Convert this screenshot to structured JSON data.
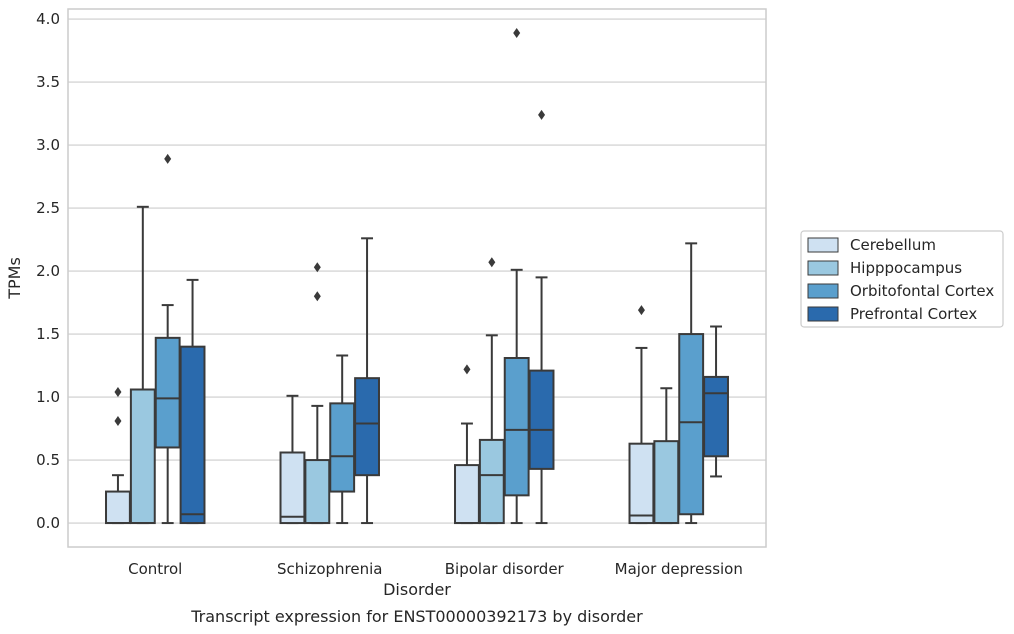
{
  "chart_data": {
    "type": "box",
    "caption": "Transcript expression for ENST00000392173 by disorder",
    "xlabel": "Disorder",
    "ylabel": "TPMs",
    "ylim": [
      -0.19,
      4.08
    ],
    "yticks": [
      0.0,
      0.5,
      1.0,
      1.5,
      2.0,
      2.5,
      3.0,
      3.5,
      4.0
    ],
    "ytick_labels": [
      "0.0",
      "0.5",
      "1.0",
      "1.5",
      "2.0",
      "2.5",
      "3.0",
      "3.5",
      "4.0"
    ],
    "grid": "horizontal",
    "legend_position": "right",
    "categories": [
      "Control",
      "Schizophrenia",
      "Bipolar disorder",
      "Major depression"
    ],
    "series": [
      {
        "name": "Cerebellum",
        "color": "#cfe1f2",
        "boxes": [
          {
            "min": 0.0,
            "q1": 0.0,
            "median": 0.0,
            "q3": 0.25,
            "max": 0.38,
            "outliers": [
              0.81,
              1.04
            ]
          },
          {
            "min": 0.0,
            "q1": 0.0,
            "median": 0.05,
            "q3": 0.56,
            "max": 1.01,
            "outliers": []
          },
          {
            "min": 0.0,
            "q1": 0.0,
            "median": 0.0,
            "q3": 0.46,
            "max": 0.79,
            "outliers": [
              1.22
            ]
          },
          {
            "min": 0.0,
            "q1": 0.0,
            "median": 0.06,
            "q3": 0.63,
            "max": 1.39,
            "outliers": [
              1.69
            ]
          }
        ]
      },
      {
        "name": "Hipppocampus",
        "color": "#9ac8e0",
        "boxes": [
          {
            "min": 0.0,
            "q1": 0.0,
            "median": 0.0,
            "q3": 1.06,
            "max": 2.51,
            "outliers": []
          },
          {
            "min": 0.0,
            "q1": 0.0,
            "median": 0.0,
            "q3": 0.5,
            "max": 0.93,
            "outliers": [
              1.8,
              2.03
            ]
          },
          {
            "min": 0.0,
            "q1": 0.0,
            "median": 0.38,
            "q3": 0.66,
            "max": 1.49,
            "outliers": [
              2.07
            ]
          },
          {
            "min": 0.0,
            "q1": 0.0,
            "median": 0.0,
            "q3": 0.65,
            "max": 1.07,
            "outliers": []
          }
        ]
      },
      {
        "name": "Orbitofontal Cortex",
        "color": "#5a9fcd",
        "boxes": [
          {
            "min": 0.0,
            "q1": 0.6,
            "median": 0.99,
            "q3": 1.47,
            "max": 1.73,
            "outliers": [
              2.89
            ]
          },
          {
            "min": 0.0,
            "q1": 0.25,
            "median": 0.53,
            "q3": 0.95,
            "max": 1.33,
            "outliers": []
          },
          {
            "min": 0.0,
            "q1": 0.22,
            "median": 0.74,
            "q3": 1.31,
            "max": 2.01,
            "outliers": [
              3.89
            ]
          },
          {
            "min": 0.0,
            "q1": 0.07,
            "median": 0.8,
            "q3": 1.5,
            "max": 2.22,
            "outliers": []
          }
        ]
      },
      {
        "name": "Prefrontal Cortex",
        "color": "#2a6aad",
        "boxes": [
          {
            "min": 0.0,
            "q1": 0.0,
            "median": 0.07,
            "q3": 1.4,
            "max": 1.93,
            "outliers": []
          },
          {
            "min": 0.0,
            "q1": 0.38,
            "median": 0.79,
            "q3": 1.15,
            "max": 2.26,
            "outliers": []
          },
          {
            "min": 0.0,
            "q1": 0.43,
            "median": 0.74,
            "q3": 1.21,
            "max": 1.95,
            "outliers": [
              3.24
            ]
          },
          {
            "min": 0.37,
            "q1": 0.53,
            "median": 1.03,
            "q3": 1.16,
            "max": 1.56,
            "outliers": []
          }
        ]
      }
    ],
    "colors": {
      "edge": "#3a3a3a",
      "grid": "#cccccc",
      "frame": "#cccccc",
      "text": "#262626",
      "legend_border": "#cccccc"
    }
  }
}
